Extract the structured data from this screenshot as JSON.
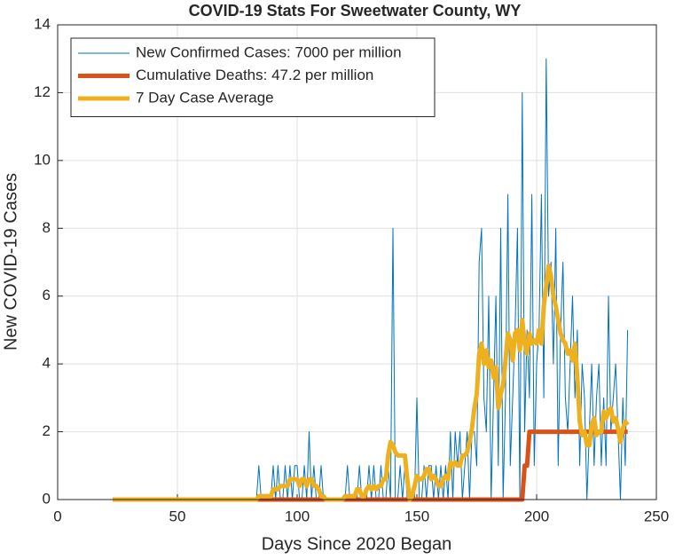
{
  "chart_data": {
    "type": "line",
    "title": "COVID-19 Stats For Sweetwater County, WY",
    "x_label": "Days Since 2020 Began",
    "y_label": "New COVID-19 Cases",
    "xlim": [
      0,
      250
    ],
    "xticks": [
      0,
      50,
      100,
      150,
      200,
      250
    ],
    "ylim": [
      0,
      14
    ],
    "yticks": [
      0,
      2,
      4,
      6,
      8,
      10,
      12,
      14
    ],
    "grid": true,
    "legend": "northwest",
    "x": [
      23,
      24,
      25,
      26,
      27,
      28,
      29,
      30,
      31,
      32,
      33,
      34,
      35,
      36,
      37,
      38,
      39,
      40,
      41,
      42,
      43,
      44,
      45,
      46,
      47,
      48,
      49,
      50,
      51,
      52,
      53,
      54,
      55,
      56,
      57,
      58,
      59,
      60,
      61,
      62,
      63,
      64,
      65,
      66,
      67,
      68,
      69,
      70,
      71,
      72,
      73,
      74,
      75,
      76,
      77,
      78,
      79,
      80,
      81,
      82,
      83,
      84,
      85,
      86,
      87,
      88,
      89,
      90,
      91,
      92,
      93,
      94,
      95,
      96,
      97,
      98,
      99,
      100,
      101,
      102,
      103,
      104,
      105,
      106,
      107,
      108,
      109,
      110,
      111,
      112,
      113,
      114,
      115,
      116,
      117,
      118,
      119,
      120,
      121,
      122,
      123,
      124,
      125,
      126,
      127,
      128,
      129,
      130,
      131,
      132,
      133,
      134,
      135,
      136,
      137,
      138,
      139,
      140,
      141,
      142,
      143,
      144,
      145,
      146,
      147,
      148,
      149,
      150,
      151,
      152,
      153,
      154,
      155,
      156,
      157,
      158,
      159,
      160,
      161,
      162,
      163,
      164,
      165,
      166,
      167,
      168,
      169,
      170,
      171,
      172,
      173,
      174,
      175,
      176,
      177,
      178,
      179,
      180,
      181,
      182,
      183,
      184,
      185,
      186,
      187,
      188,
      189,
      190,
      191,
      192,
      193,
      194,
      195,
      196,
      197,
      198,
      199,
      200,
      201,
      202,
      203,
      204,
      205,
      206,
      207,
      208,
      209,
      210,
      211,
      212,
      213,
      214,
      215,
      216,
      217,
      218,
      219,
      220,
      221,
      222,
      223,
      224,
      225,
      226,
      227,
      228,
      229,
      230,
      231,
      232,
      233,
      234,
      235,
      236,
      237,
      238
    ],
    "series": [
      {
        "name": "New Confirmed Cases: 7000 per million",
        "color": "#0072bd",
        "width": 1,
        "values": [
          0,
          0,
          0,
          0,
          0,
          0,
          0,
          0,
          0,
          0,
          0,
          0,
          0,
          0,
          0,
          0,
          0,
          0,
          0,
          0,
          0,
          0,
          0,
          0,
          0,
          0,
          0,
          0,
          0,
          0,
          0,
          0,
          0,
          0,
          0,
          0,
          0,
          0,
          0,
          0,
          0,
          0,
          0,
          0,
          0,
          0,
          0,
          0,
          0,
          0,
          0,
          0,
          0,
          0,
          0,
          0,
          0,
          0,
          0,
          0,
          0,
          1,
          0,
          0,
          0,
          0,
          0,
          1,
          0,
          1,
          0,
          0,
          1,
          0,
          1,
          0,
          1,
          1,
          0,
          0,
          1,
          0,
          2,
          0,
          1,
          0,
          0,
          1,
          0,
          0,
          0,
          0,
          0,
          0,
          0,
          0,
          0,
          0,
          1,
          0,
          0,
          0,
          0,
          1,
          0,
          0,
          0,
          1,
          0,
          1,
          0,
          0,
          1,
          0,
          0,
          1,
          0,
          8,
          0,
          0,
          1,
          0,
          1,
          0,
          0,
          0,
          0,
          3,
          0,
          0,
          1,
          0,
          1,
          1,
          0,
          1,
          0,
          1,
          0,
          1,
          0,
          2,
          0,
          2,
          1,
          2,
          0,
          1,
          2,
          0,
          2,
          2,
          1,
          7,
          8,
          3,
          2,
          6,
          0,
          3,
          6,
          1,
          8,
          0,
          3,
          9,
          1,
          3,
          5,
          8,
          0,
          12,
          2,
          5,
          3,
          9,
          1,
          4,
          5,
          9,
          3,
          13,
          6,
          7,
          4,
          8,
          1,
          5,
          7,
          3,
          2,
          4,
          6,
          3,
          5,
          1,
          4,
          3,
          0,
          2,
          4,
          1,
          3,
          4,
          1,
          3,
          1,
          6,
          2,
          3,
          4,
          2,
          0,
          3,
          1,
          5
        ]
      },
      {
        "name": "Cumulative Deaths: 47.2 per million",
        "color": "#d95319",
        "width": 5,
        "values": [
          0,
          0,
          0,
          0,
          0,
          0,
          0,
          0,
          0,
          0,
          0,
          0,
          0,
          0,
          0,
          0,
          0,
          0,
          0,
          0,
          0,
          0,
          0,
          0,
          0,
          0,
          0,
          0,
          0,
          0,
          0,
          0,
          0,
          0,
          0,
          0,
          0,
          0,
          0,
          0,
          0,
          0,
          0,
          0,
          0,
          0,
          0,
          0,
          0,
          0,
          0,
          0,
          0,
          0,
          0,
          0,
          0,
          0,
          0,
          0,
          0,
          0,
          0,
          0,
          0,
          0,
          0,
          0,
          0,
          0,
          0,
          0,
          0,
          0,
          0,
          0,
          0,
          0,
          0,
          0,
          0,
          0,
          0,
          0,
          0,
          0,
          0,
          0,
          0,
          0,
          0,
          0,
          0,
          0,
          0,
          0,
          0,
          0,
          0,
          0,
          0,
          0,
          0,
          0,
          0,
          0,
          0,
          0,
          0,
          0,
          0,
          0,
          0,
          0,
          0,
          0,
          0,
          0,
          0,
          0,
          0,
          0,
          0,
          0,
          0,
          0,
          0,
          0,
          0,
          0,
          0,
          0,
          0,
          0,
          0,
          0,
          0,
          0,
          0,
          0,
          0,
          0,
          0,
          0,
          0,
          0,
          0,
          0,
          0,
          0,
          0,
          0,
          0,
          0,
          0,
          0,
          0,
          0,
          0,
          0,
          0,
          0,
          0,
          0,
          0,
          0,
          0,
          0,
          0,
          0,
          0,
          0,
          1,
          1,
          2,
          2,
          2,
          2,
          2,
          2,
          2,
          2,
          2,
          2,
          2,
          2,
          2,
          2,
          2,
          2,
          2,
          2,
          2,
          2,
          2,
          2,
          2,
          2,
          2,
          2,
          2,
          2,
          2,
          2,
          2,
          2,
          2,
          2,
          2,
          2,
          2,
          2,
          2,
          2,
          2,
          2
        ]
      },
      {
        "name": "7 Day Case Average",
        "color": "#edb120",
        "width": 5,
        "values": [
          0,
          0,
          0,
          0,
          0,
          0,
          0,
          0,
          0,
          0,
          0,
          0,
          0,
          0,
          0,
          0,
          0,
          0,
          0,
          0,
          0,
          0,
          0,
          0,
          0,
          0,
          0,
          0,
          0,
          0,
          0,
          0,
          0,
          0,
          0,
          0,
          0,
          0,
          0,
          0,
          0,
          0,
          0,
          0,
          0,
          0,
          0,
          0,
          0,
          0,
          0,
          0,
          0,
          0,
          0,
          0,
          0,
          0,
          0,
          0,
          0,
          0.1,
          0.1,
          0.1,
          0.1,
          0.1,
          0.1,
          0.3,
          0.3,
          0.3,
          0.4,
          0.4,
          0.4,
          0.4,
          0.6,
          0.6,
          0.6,
          0.6,
          0.4,
          0.6,
          0.6,
          0.4,
          0.6,
          0.6,
          0.4,
          0.4,
          0.3,
          0.1,
          0.1,
          0,
          0,
          0,
          0,
          0,
          0,
          0,
          0,
          0.1,
          0.1,
          0.1,
          0.1,
          0.1,
          0.3,
          0.3,
          0.1,
          0.1,
          0.3,
          0.4,
          0.3,
          0.4,
          0.3,
          0.4,
          0.4,
          0.6,
          0.6,
          1.3,
          1.7,
          1.6,
          1.4,
          1.3,
          1.3,
          1.3,
          1.3,
          0.6,
          0,
          0.1,
          0.4,
          0.7,
          0.6,
          0.6,
          0.7,
          0.9,
          0.9,
          0.6,
          0.7,
          0.6,
          0.4,
          0.4,
          0.6,
          0.7,
          0.6,
          1.1,
          1,
          1.1,
          1,
          1,
          1.3,
          1.3,
          1.4,
          1.7,
          2.1,
          2.7,
          3.1,
          4.3,
          4.6,
          4,
          4.4,
          3.9,
          4.1,
          3.6,
          3.9,
          2.7,
          3.1,
          3.4,
          4.1,
          4.9,
          4.7,
          4.1,
          4.9,
          5,
          4.4,
          5.3,
          4.6,
          4.3,
          4.9,
          4.6,
          4.7,
          4.6,
          5,
          4.6,
          5.7,
          6.3,
          6.9,
          6.6,
          6,
          5.7,
          5.3,
          4.9,
          4.7,
          4.6,
          4.3,
          4.4,
          4.1,
          4.6,
          3.6,
          2.3,
          1.9,
          2,
          1.6,
          1.6,
          2.2,
          2.4,
          1.9,
          2,
          2,
          2.6,
          2.4,
          2.6,
          2.7,
          2.3,
          2.4,
          2.1,
          1.7,
          2.1,
          2.3,
          2.2
        ]
      }
    ]
  }
}
